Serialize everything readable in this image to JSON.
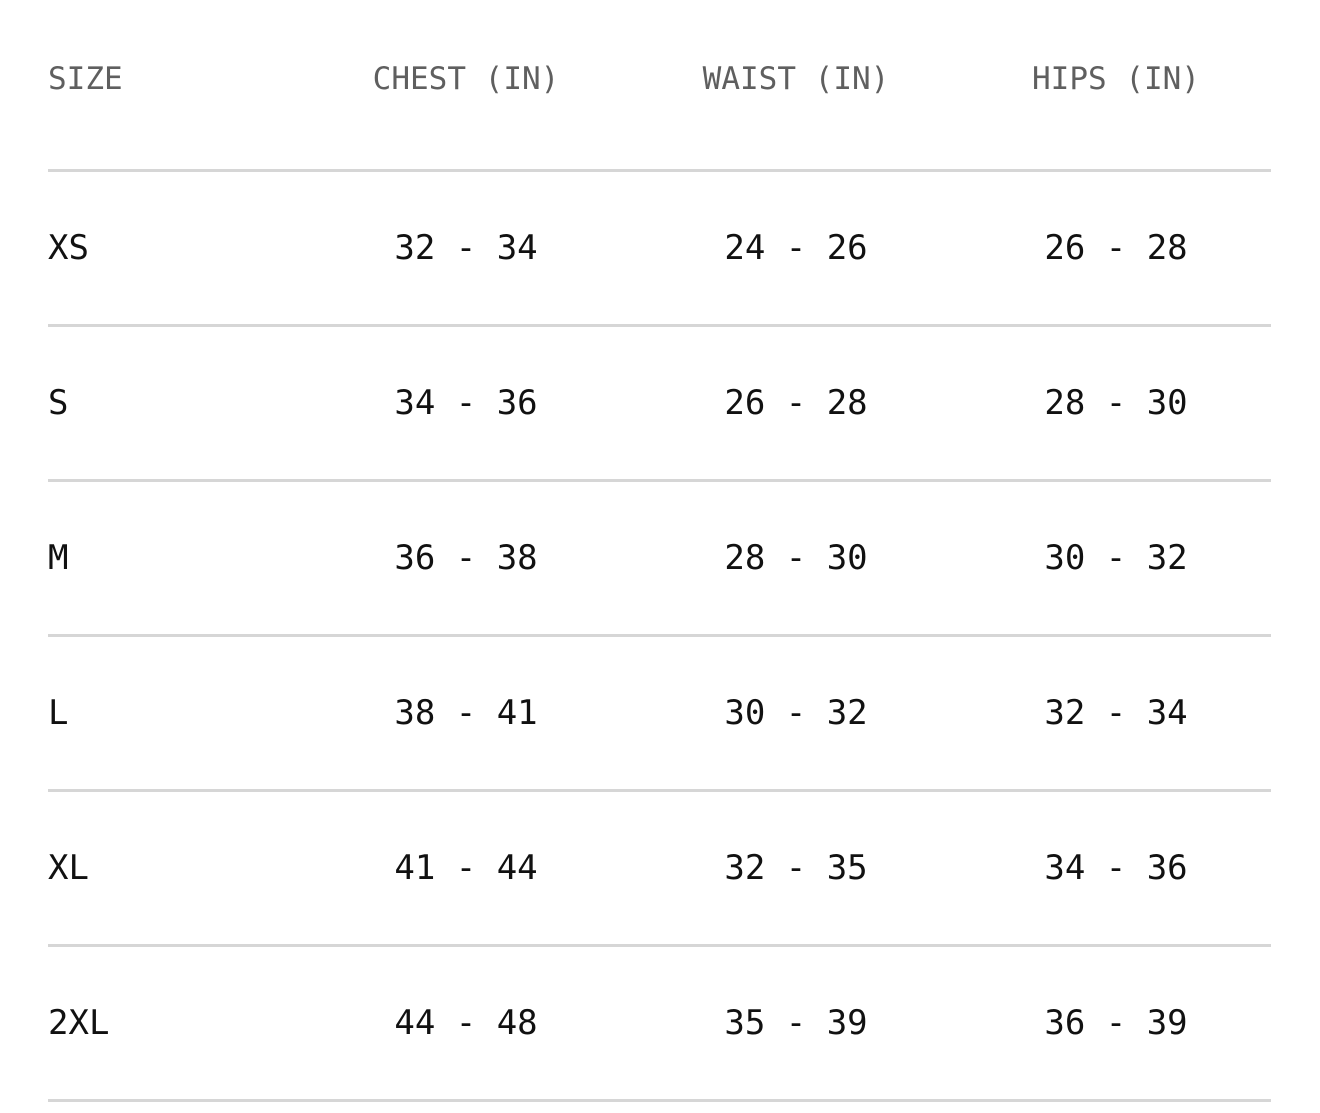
{
  "headers": [
    "SIZE",
    "CHEST (IN)",
    "WAIST (IN)",
    "HIPS (IN)"
  ],
  "rows": [
    [
      "XS",
      "32 - 34",
      "24 - 26",
      "26 - 28"
    ],
    [
      "S",
      "34 - 36",
      "26 - 28",
      "28 - 30"
    ],
    [
      "M",
      "36 - 38",
      "28 - 30",
      "30 - 32"
    ],
    [
      "L",
      "38 - 41",
      "30 - 32",
      "32 - 34"
    ],
    [
      "XL",
      "41 - 44",
      "32 - 35",
      "34 - 36"
    ],
    [
      "2XL",
      "44 - 48",
      "35 - 39",
      "36 - 39"
    ]
  ]
}
